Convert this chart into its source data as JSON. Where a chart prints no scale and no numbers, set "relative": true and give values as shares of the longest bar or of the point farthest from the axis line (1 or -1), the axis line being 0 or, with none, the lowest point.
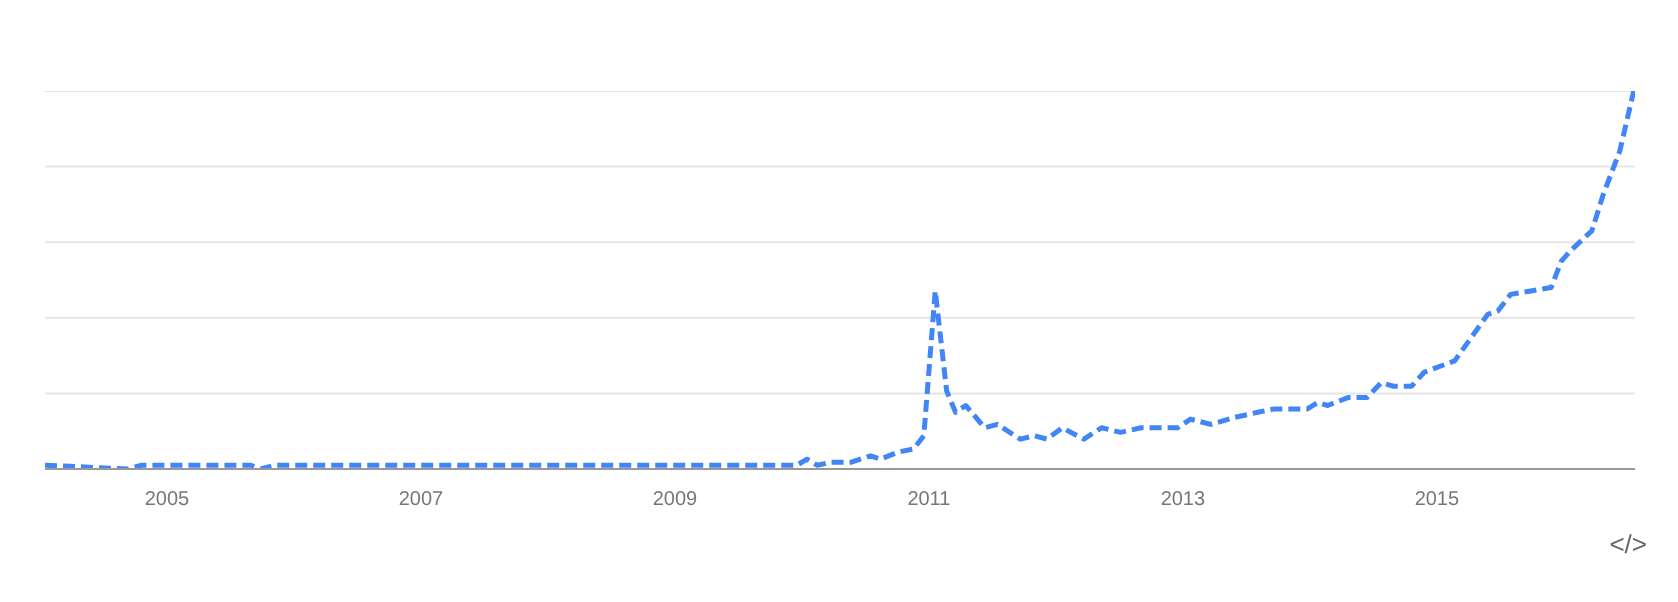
{
  "chart_data": {
    "type": "line",
    "relative": true,
    "x": [
      2004.04,
      2004.69,
      2004.8,
      2005.66,
      2005.74,
      2005.85,
      2009.96,
      2010.04,
      2010.12,
      2010.23,
      2010.39,
      2010.54,
      2010.62,
      2010.75,
      2010.88,
      2010.96,
      2011.05,
      2011.14,
      2011.21,
      2011.29,
      2011.44,
      2011.54,
      2011.72,
      2011.83,
      2011.93,
      2012.05,
      2012.22,
      2012.36,
      2012.51,
      2012.67,
      2012.96,
      2013.06,
      2013.22,
      2013.4,
      2013.59,
      2013.72,
      2013.98,
      2014.06,
      2014.14,
      2014.3,
      2014.45,
      2014.56,
      2014.66,
      2014.8,
      2014.9,
      2015.14,
      2015.4,
      2015.48,
      2015.58,
      2015.74,
      2015.9,
      2015.98,
      2016.06,
      2016.22,
      2016.31,
      2016.44,
      2016.55
    ],
    "series": [
      {
        "color": "#4285f4",
        "values": [
          0.01,
          0,
          0.01,
          0.01,
          0,
          0.01,
          0.01,
          0.026,
          0.01,
          0.018,
          0.018,
          0.035,
          0.026,
          0.044,
          0.053,
          0.088,
          0.471,
          0.206,
          0.15,
          0.168,
          0.109,
          0.118,
          0.079,
          0.088,
          0.079,
          0.109,
          0.079,
          0.109,
          0.097,
          0.109,
          0.109,
          0.132,
          0.118,
          0.136,
          0.15,
          0.159,
          0.159,
          0.176,
          0.168,
          0.189,
          0.189,
          0.228,
          0.219,
          0.219,
          0.256,
          0.286,
          0.409,
          0.418,
          0.462,
          0.471,
          0.48,
          0.55,
          0.58,
          0.63,
          0.726,
          0.841,
          1.0
        ]
      }
    ],
    "xlim": [
      2004.04,
      2016.56
    ],
    "xticks": [
      2005,
      2007,
      2009,
      2011,
      2013,
      2015
    ],
    "tick_labels": "x",
    "grid": "y",
    "line_style": "dashed",
    "marker": "none",
    "annotations": [
      "</>"
    ]
  }
}
